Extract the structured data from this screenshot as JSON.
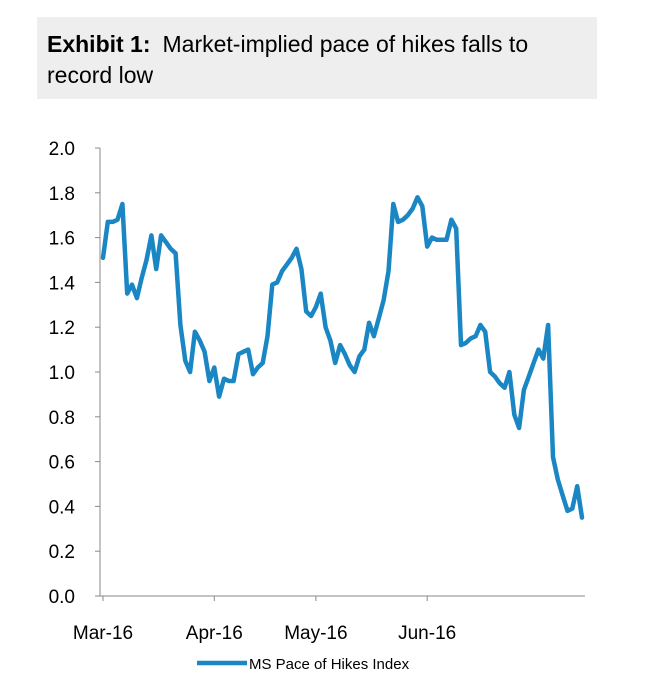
{
  "title": {
    "label": "Exhibit 1:",
    "line1": "Market-implied pace of hikes falls to",
    "line2": "record low"
  },
  "chart_data": {
    "type": "line",
    "title": "Exhibit 1: Market-implied pace of hikes falls to record low",
    "xlabel": "",
    "ylabel": "",
    "ylim": [
      0.0,
      2.0
    ],
    "yticks": [
      "0.0",
      "0.2",
      "0.4",
      "0.6",
      "0.8",
      "1.0",
      "1.2",
      "1.4",
      "1.6",
      "1.8",
      "2.0"
    ],
    "x_tick_labels": [
      {
        "label": "Mar-16",
        "index": 0
      },
      {
        "label": "Apr-16",
        "index": 23
      },
      {
        "label": "May-16",
        "index": 44
      },
      {
        "label": "Jun-16",
        "index": 67
      }
    ],
    "grid": false,
    "legend": "bottom-center",
    "color": "#1a87c4",
    "series": [
      {
        "name": "MS Pace of Hikes Index",
        "values": [
          1.51,
          1.67,
          1.67,
          1.68,
          1.75,
          1.35,
          1.39,
          1.33,
          1.42,
          1.5,
          1.61,
          1.46,
          1.61,
          1.58,
          1.55,
          1.53,
          1.21,
          1.05,
          1.0,
          1.18,
          1.14,
          1.09,
          0.96,
          1.02,
          0.89,
          0.97,
          0.96,
          0.96,
          1.08,
          1.09,
          1.1,
          0.99,
          1.02,
          1.04,
          1.16,
          1.39,
          1.4,
          1.45,
          1.48,
          1.51,
          1.55,
          1.46,
          1.27,
          1.25,
          1.29,
          1.35,
          1.2,
          1.14,
          1.04,
          1.12,
          1.08,
          1.03,
          1.0,
          1.07,
          1.1,
          1.22,
          1.16,
          1.24,
          1.32,
          1.45,
          1.75,
          1.67,
          1.68,
          1.7,
          1.73,
          1.78,
          1.74,
          1.56,
          1.6,
          1.59,
          1.59,
          1.59,
          1.68,
          1.64,
          1.12,
          1.13,
          1.15,
          1.16,
          1.21,
          1.18,
          1.0,
          0.98,
          0.95,
          0.93,
          1.0,
          0.81,
          0.75,
          0.92,
          0.98,
          1.04,
          1.1,
          1.06,
          1.21,
          0.62,
          0.52,
          0.45,
          0.38,
          0.39,
          0.49,
          0.35
        ]
      }
    ]
  }
}
